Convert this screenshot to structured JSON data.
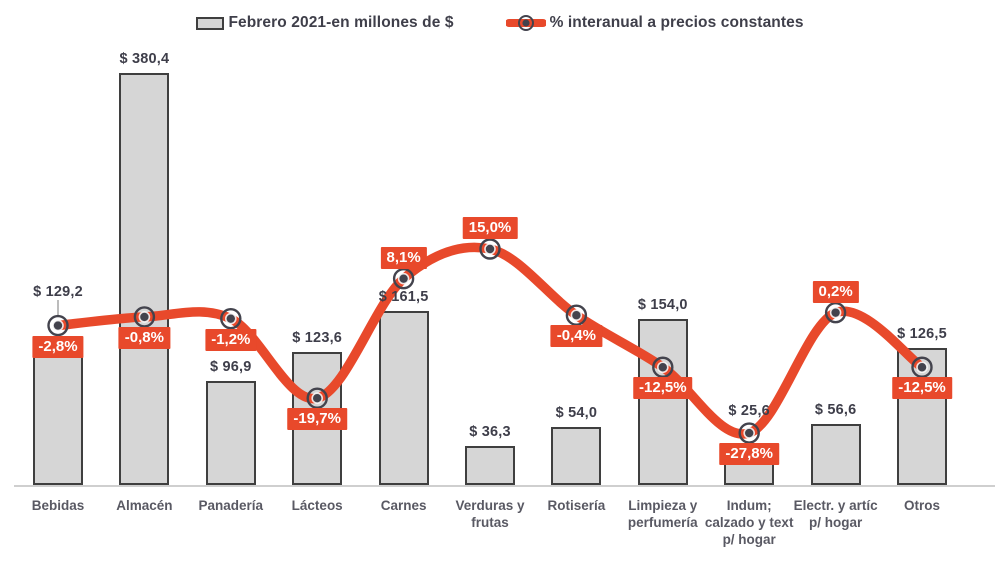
{
  "legend": {
    "bar_label": "Febrero 2021-en millones de $",
    "line_label": "% interanual a precios constantes"
  },
  "colors": {
    "bar_fill": "#d6d6d6",
    "bar_border": "#3f3f3f",
    "line": "#e8492b",
    "label_box_bg": "#e8492b",
    "label_box_text": "#ffffff",
    "bar_value_text": "#3e3e4a",
    "category_text": "#595963",
    "axis_line": "#cfcfcf",
    "marker": "#43434d"
  },
  "chart_data": {
    "type": "bar",
    "combo": "bar+line",
    "title": "",
    "xlabel": "",
    "ylabel": "",
    "grid": "off",
    "legend_position": "top",
    "bar_axis": {
      "min": 0,
      "implied_max": 400,
      "unit": "millones de $"
    },
    "line_axis": {
      "unit": "%"
    },
    "categories": [
      "Bebidas",
      "Almacén",
      "Panadería",
      "Lácteos",
      "Carnes",
      "Verduras y frutas",
      "Rotisería",
      "Limpieza y perfumería",
      "Indum; calzado y text p/ hogar",
      "Electr. y artíc p/ hogar",
      "Otros"
    ],
    "series": [
      {
        "name": "Febrero 2021-en millones de $",
        "type": "bar",
        "values": [
          129.2,
          380.4,
          96.9,
          123.6,
          161.5,
          36.3,
          54.0,
          154.0,
          25.6,
          56.6,
          126.5
        ],
        "labels": [
          "$ 129,2",
          "$ 380,4",
          "$ 96,9",
          "$ 123,6",
          "$ 161,5",
          "$ 36,3",
          "$ 54,0",
          "$ 154,0",
          "$ 25,6",
          "$ 56,6",
          "$ 126,5"
        ]
      },
      {
        "name": "% interanual a precios constantes",
        "type": "line",
        "values": [
          -2.8,
          -0.8,
          -1.2,
          -19.7,
          8.1,
          15.0,
          -0.4,
          -12.5,
          -27.8,
          0.2,
          -12.5
        ],
        "labels": [
          "-2,8%",
          "-0,8%",
          "-1,2%",
          "-19,7%",
          "8,1%",
          "15,0%",
          "-0,4%",
          "-12,5%",
          "-27,8%",
          "0,2%",
          "-12,5%"
        ]
      }
    ]
  }
}
